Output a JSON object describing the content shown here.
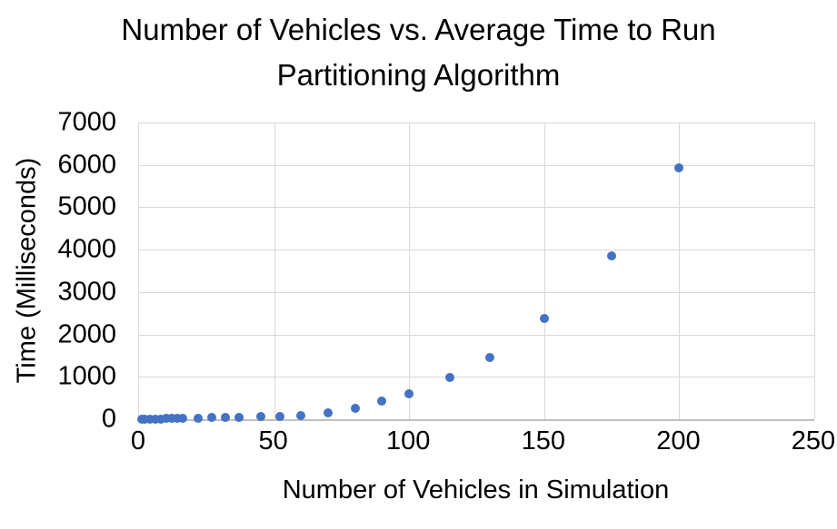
{
  "chart_data": {
    "type": "scatter",
    "title": "Number of Vehicles vs. Average Time to Run Partitioning Algorithm",
    "title_lines": [
      "Number of Vehicles vs. Average Time to Run",
      "Partitioning Algorithm"
    ],
    "xlabel": "Number of Vehicles in Simulation",
    "ylabel": "Time (Milliseconds)",
    "xlim": [
      0,
      250
    ],
    "ylim": [
      0,
      7000
    ],
    "x_ticks": [
      0,
      50,
      100,
      150,
      200,
      250
    ],
    "y_ticks": [
      0,
      1000,
      2000,
      3000,
      4000,
      5000,
      6000,
      7000
    ],
    "grid": true,
    "legend": false,
    "marker_color": "#4472C4",
    "gridline_color": "#D9D9D9",
    "axis_line_color": "#BFBFBF",
    "points": [
      [
        1,
        2
      ],
      [
        2,
        3
      ],
      [
        4,
        4
      ],
      [
        6,
        6
      ],
      [
        8,
        8
      ],
      [
        10,
        11
      ],
      [
        12,
        14
      ],
      [
        14,
        17
      ],
      [
        16,
        20
      ],
      [
        22,
        26
      ],
      [
        27,
        33
      ],
      [
        32,
        40
      ],
      [
        37,
        48
      ],
      [
        45,
        55
      ],
      [
        52,
        68
      ],
      [
        60,
        95
      ],
      [
        70,
        160
      ],
      [
        80,
        255
      ],
      [
        90,
        430
      ],
      [
        100,
        610
      ],
      [
        115,
        985
      ],
      [
        130,
        1460
      ],
      [
        150,
        2370
      ],
      [
        175,
        3855
      ],
      [
        200,
        5940
      ]
    ]
  }
}
